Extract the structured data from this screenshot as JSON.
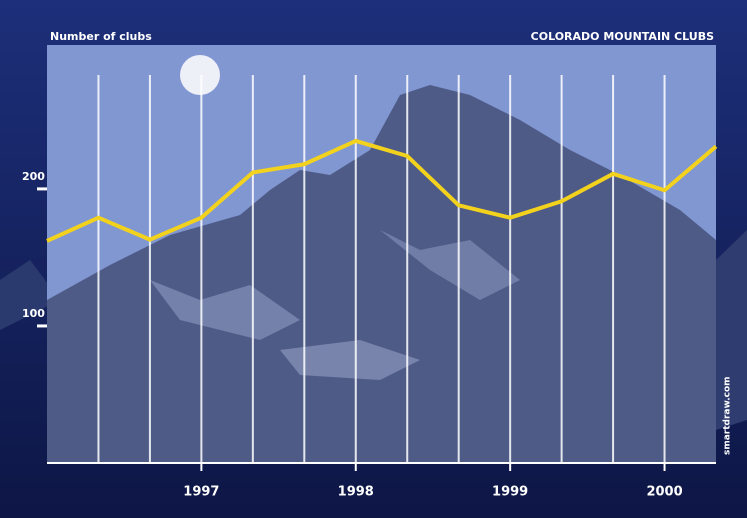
{
  "chart_data": {
    "type": "line",
    "title": "COLORADO MOUNTAIN CLUBS",
    "y_label": "Number of clubs",
    "credit": "smartdraw.com",
    "categories": [
      null,
      null,
      null,
      "1997",
      null,
      null,
      "1998",
      null,
      null,
      "1999",
      null,
      null,
      "2000",
      null
    ],
    "series": [
      {
        "name": "Number of clubs",
        "color": "#f2d21c",
        "values": [
          162,
          179,
          163,
          179,
          212,
          218,
          235,
          224,
          188,
          179,
          191,
          211,
          199,
          231
        ]
      }
    ],
    "ylim": [
      0,
      305
    ],
    "yticks": [
      100,
      200
    ]
  }
}
